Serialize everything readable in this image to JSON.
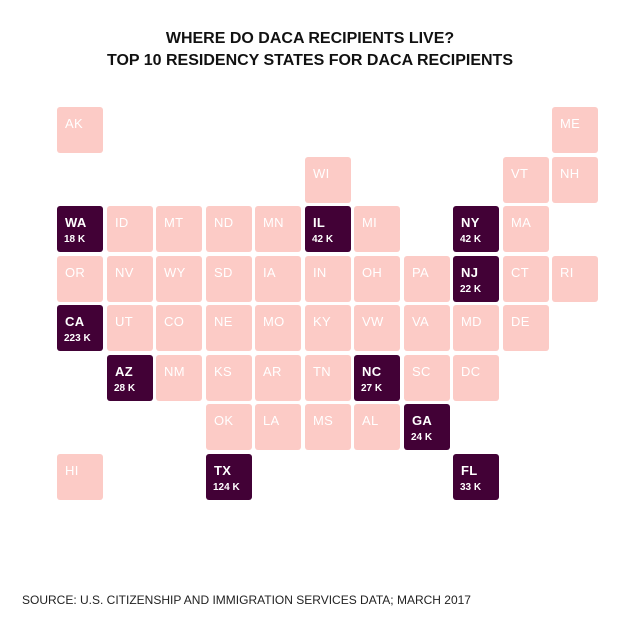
{
  "title": "WHERE DO DACA RECIPIENTS LIVE?",
  "subtitle": "TOP 10 RESIDENCY STATES FOR DACA RECIPIENTS",
  "source": "SOURCE: U.S. CITIZENSHIP AND IMMIGRATION SERVICES DATA; MARCH 2017",
  "colors": {
    "highlight": "#420136",
    "base": "#fccbc6"
  },
  "chart_data": {
    "type": "tile-map",
    "title": "WHERE DO DACA RECIPIENTS LIVE?",
    "subtitle": "TOP 10 RESIDENCY STATES FOR DACA RECIPIENTS",
    "states": [
      {
        "abbr": "AK",
        "row": 0,
        "col": 0
      },
      {
        "abbr": "ME",
        "row": 0,
        "col": 10
      },
      {
        "abbr": "WI",
        "row": 1,
        "col": 5
      },
      {
        "abbr": "VT",
        "row": 1,
        "col": 9
      },
      {
        "abbr": "NH",
        "row": 1,
        "col": 10
      },
      {
        "abbr": "WA",
        "row": 2,
        "col": 0,
        "value": 18,
        "label": "18 K"
      },
      {
        "abbr": "ID",
        "row": 2,
        "col": 1
      },
      {
        "abbr": "MT",
        "row": 2,
        "col": 2
      },
      {
        "abbr": "ND",
        "row": 2,
        "col": 3
      },
      {
        "abbr": "MN",
        "row": 2,
        "col": 4
      },
      {
        "abbr": "IL",
        "row": 2,
        "col": 5,
        "value": 42,
        "label": "42 K"
      },
      {
        "abbr": "MI",
        "row": 2,
        "col": 6
      },
      {
        "abbr": "NY",
        "row": 2,
        "col": 8,
        "value": 42,
        "label": "42 K"
      },
      {
        "abbr": "MA",
        "row": 2,
        "col": 9
      },
      {
        "abbr": "OR",
        "row": 3,
        "col": 0
      },
      {
        "abbr": "NV",
        "row": 3,
        "col": 1
      },
      {
        "abbr": "WY",
        "row": 3,
        "col": 2
      },
      {
        "abbr": "SD",
        "row": 3,
        "col": 3
      },
      {
        "abbr": "IA",
        "row": 3,
        "col": 4
      },
      {
        "abbr": "IN",
        "row": 3,
        "col": 5
      },
      {
        "abbr": "OH",
        "row": 3,
        "col": 6
      },
      {
        "abbr": "PA",
        "row": 3,
        "col": 7
      },
      {
        "abbr": "NJ",
        "row": 3,
        "col": 8,
        "value": 22,
        "label": "22 K"
      },
      {
        "abbr": "CT",
        "row": 3,
        "col": 9
      },
      {
        "abbr": "RI",
        "row": 3,
        "col": 10
      },
      {
        "abbr": "CA",
        "row": 4,
        "col": 0,
        "value": 223,
        "label": "223 K"
      },
      {
        "abbr": "UT",
        "row": 4,
        "col": 1
      },
      {
        "abbr": "CO",
        "row": 4,
        "col": 2
      },
      {
        "abbr": "NE",
        "row": 4,
        "col": 3
      },
      {
        "abbr": "MO",
        "row": 4,
        "col": 4
      },
      {
        "abbr": "KY",
        "row": 4,
        "col": 5
      },
      {
        "abbr": "VW",
        "row": 4,
        "col": 6
      },
      {
        "abbr": "VA",
        "row": 4,
        "col": 7
      },
      {
        "abbr": "MD",
        "row": 4,
        "col": 8
      },
      {
        "abbr": "DE",
        "row": 4,
        "col": 9
      },
      {
        "abbr": "AZ",
        "row": 5,
        "col": 1,
        "value": 28,
        "label": "28 K"
      },
      {
        "abbr": "NM",
        "row": 5,
        "col": 2
      },
      {
        "abbr": "KS",
        "row": 5,
        "col": 3
      },
      {
        "abbr": "AR",
        "row": 5,
        "col": 4
      },
      {
        "abbr": "TN",
        "row": 5,
        "col": 5
      },
      {
        "abbr": "NC",
        "row": 5,
        "col": 6,
        "value": 27,
        "label": "27 K"
      },
      {
        "abbr": "SC",
        "row": 5,
        "col": 7
      },
      {
        "abbr": "DC",
        "row": 5,
        "col": 8
      },
      {
        "abbr": "OK",
        "row": 6,
        "col": 3
      },
      {
        "abbr": "LA",
        "row": 6,
        "col": 4
      },
      {
        "abbr": "MS",
        "row": 6,
        "col": 5
      },
      {
        "abbr": "AL",
        "row": 6,
        "col": 6
      },
      {
        "abbr": "GA",
        "row": 6,
        "col": 7,
        "value": 24,
        "label": "24 K"
      },
      {
        "abbr": "HI",
        "row": 7,
        "col": 0
      },
      {
        "abbr": "TX",
        "row": 7,
        "col": 3,
        "value": 124,
        "label": "124 K"
      },
      {
        "abbr": "FL",
        "row": 7,
        "col": 8,
        "value": 33,
        "label": "33 K"
      }
    ]
  }
}
